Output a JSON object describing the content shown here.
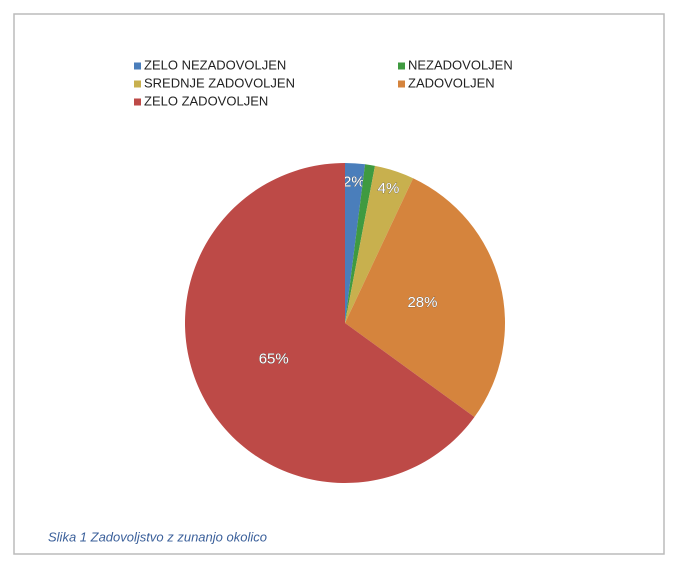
{
  "chart_data": {
    "type": "pie",
    "categories": [
      "ZELO NEZADOVOLJEN",
      "NEZADOVOLJEN",
      "SREDNJE ZADOVOLJEN",
      "ZADOVOLJEN",
      "ZELO ZADOVOLJEN"
    ],
    "values": [
      2,
      1,
      4,
      28,
      65
    ],
    "value_labels": [
      "2%",
      null,
      "4%",
      "28%",
      "65%"
    ],
    "colors": [
      "#4a7ebb",
      "#3f9a40",
      "#c8b04e",
      "#d5843d",
      "#bd4a47"
    ],
    "caption": "Slika 1 Zadovoljstvo z zunanjo okolico"
  }
}
